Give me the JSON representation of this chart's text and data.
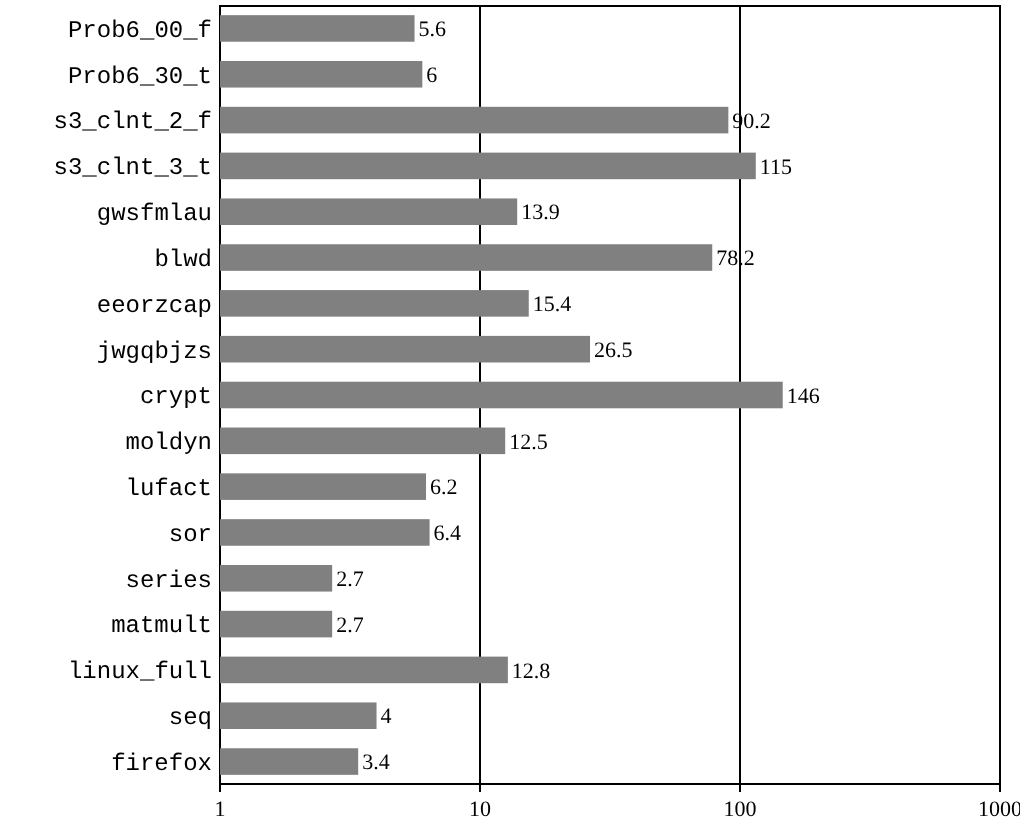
{
  "chart_data": {
    "type": "bar",
    "orientation": "horizontal",
    "log": "x",
    "grid": "x",
    "data_labels": true,
    "color": "#808080",
    "categories": [
      "Prob6_00_f",
      "Prob6_30_t",
      "s3_clnt_2_f",
      "s3_clnt_3_t",
      "gwsfmlau",
      "blwd",
      "eeorzcap",
      "jwgqbjzs",
      "crypt",
      "moldyn",
      "lufact",
      "sor",
      "series",
      "matmult",
      "linux_full",
      "seq",
      "firefox"
    ],
    "values": [
      5.6,
      6,
      90.2,
      115,
      13.9,
      78.2,
      15.4,
      26.5,
      146,
      12.5,
      6.2,
      6.4,
      2.7,
      2.7,
      12.8,
      4,
      3.4
    ],
    "xlim": [
      1,
      1000
    ],
    "xticks": [
      1,
      10,
      100,
      1000
    ]
  }
}
